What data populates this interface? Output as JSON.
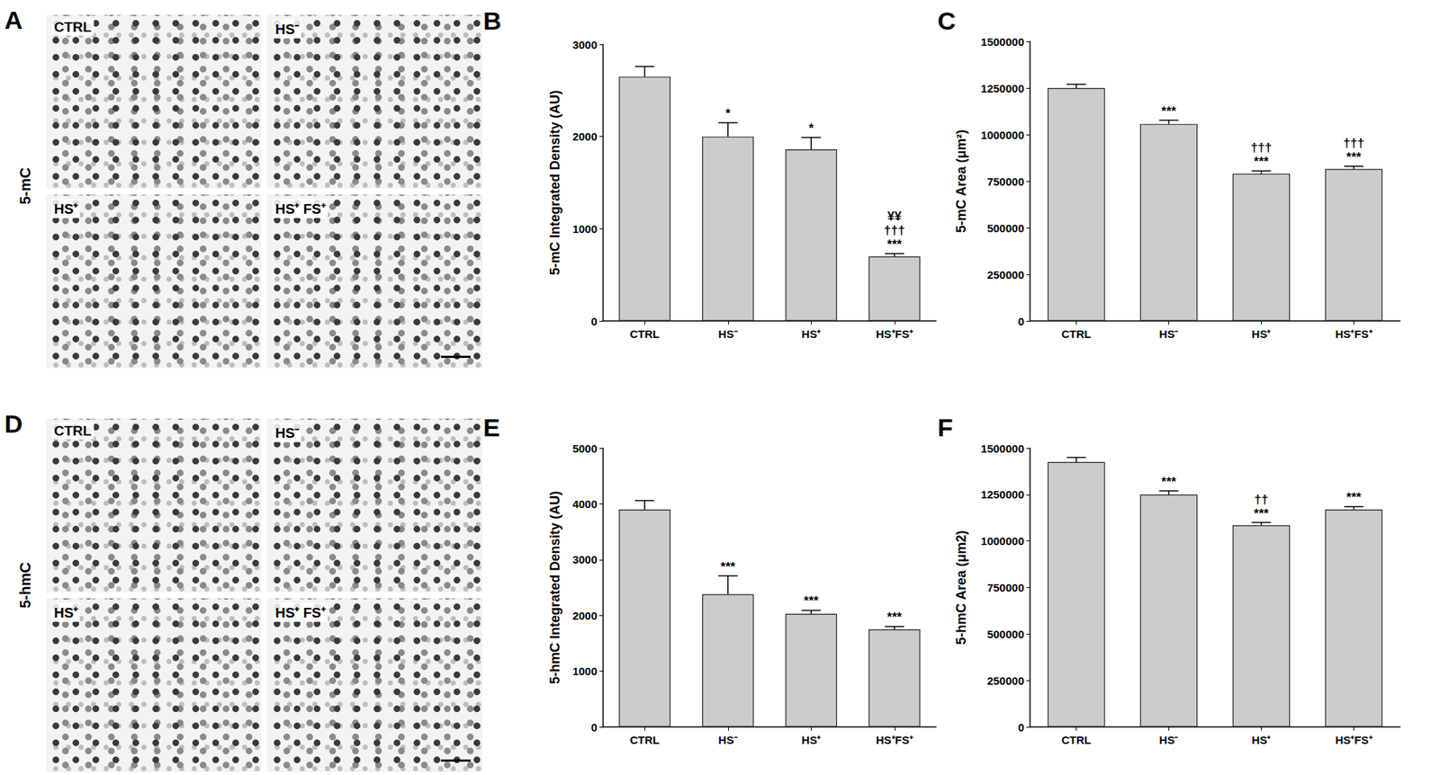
{
  "image_panels": [
    {
      "label": "A",
      "row_label": "5-mC",
      "images": [
        "CTRL",
        "HS⁻",
        "HS⁺",
        "HS⁺ FS⁺"
      ]
    },
    {
      "label": "D",
      "row_label": "5-hmC",
      "images": [
        "CTRL",
        "HS⁻",
        "HS⁺",
        "HS⁺ FS⁺"
      ]
    }
  ],
  "chart_data": [
    {
      "type": "bar",
      "title": "B",
      "ylabel": "5-mC Integrated Density (AU)",
      "categories": [
        "CTRL",
        "HS⁻",
        "HS⁺",
        "HS⁺FS⁺"
      ],
      "values": [
        2650,
        2000,
        1860,
        700
      ],
      "errors": [
        110,
        150,
        130,
        30
      ],
      "annotations": [
        [],
        [
          "*"
        ],
        [
          "*"
        ],
        [
          "¥¥",
          "†††",
          "***"
        ]
      ],
      "color": "#cccccc",
      "ylim": [
        0,
        3000
      ],
      "yticks": [
        0,
        1000,
        2000,
        3000
      ],
      "grid": false
    },
    {
      "type": "bar",
      "title": "C",
      "ylabel": "5-mC Area (μm²)",
      "categories": [
        "CTRL",
        "HS⁻",
        "HS⁺",
        "HS⁺FS⁺"
      ],
      "values": [
        1250000,
        1057000,
        790000,
        815000
      ],
      "errors": [
        20000,
        20000,
        15000,
        15000
      ],
      "annotations": [
        [],
        [
          "***"
        ],
        [
          "†††",
          "***"
        ],
        [
          "†††",
          "***"
        ]
      ],
      "color": "#cccccc",
      "ylim": [
        0,
        1500000
      ],
      "yticks": [
        0,
        250000,
        500000,
        750000,
        1000000,
        1250000,
        1500000
      ],
      "grid": false
    },
    {
      "type": "bar",
      "title": "E",
      "ylabel": "5-hmC Integrated Density (AU)",
      "categories": [
        "CTRL",
        "HS⁻",
        "HS⁺",
        "HS⁺FS⁺"
      ],
      "values": [
        3900,
        2380,
        2030,
        1750
      ],
      "errors": [
        160,
        330,
        60,
        50
      ],
      "annotations": [
        [],
        [
          "***"
        ],
        [
          "***"
        ],
        [
          "***"
        ]
      ],
      "color": "#cccccc",
      "ylim": [
        0,
        5000
      ],
      "yticks": [
        0,
        1000,
        2000,
        3000,
        4000,
        5000
      ],
      "grid": false
    },
    {
      "type": "bar",
      "title": "F",
      "ylabel": "5-hmC Area (μm2)",
      "categories": [
        "CTRL",
        "HS⁻",
        "HS⁺",
        "HS⁺FS⁺"
      ],
      "values": [
        1425000,
        1250000,
        1085000,
        1170000
      ],
      "errors": [
        25000,
        20000,
        15000,
        15000
      ],
      "annotations": [
        [],
        [
          "***"
        ],
        [
          "††",
          "***"
        ],
        [
          "***"
        ]
      ],
      "color": "#cccccc",
      "ylim": [
        0,
        1500000
      ],
      "yticks": [
        0,
        250000,
        500000,
        750000,
        1000000,
        1250000,
        1500000
      ],
      "grid": false
    }
  ]
}
